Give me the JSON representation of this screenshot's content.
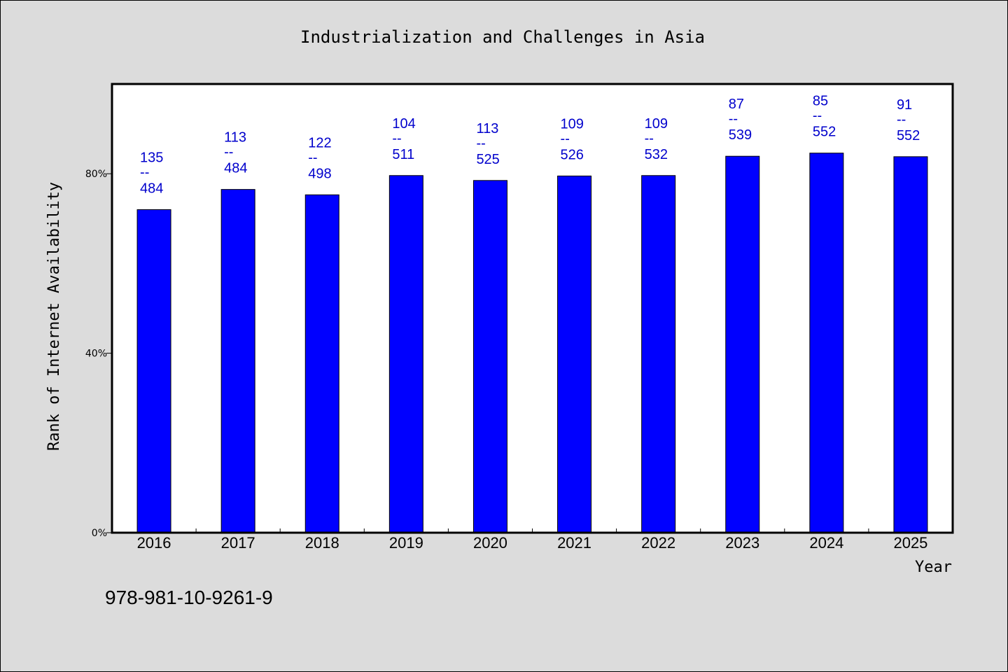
{
  "chart_data": {
    "type": "bar",
    "title": "Industrialization and Challenges in Asia",
    "xlabel": "Year",
    "ylabel": "Rank of Internet Availability",
    "categories": [
      "2016",
      "2017",
      "2018",
      "2019",
      "2020",
      "2021",
      "2022",
      "2023",
      "2024",
      "2025"
    ],
    "values": [
      72,
      76.5,
      75.3,
      79.6,
      78.5,
      79.5,
      79.6,
      83.9,
      84.6,
      83.8
    ],
    "ylim": [
      0,
      100
    ],
    "yticks": [
      0,
      40,
      80
    ],
    "ytick_labels": [
      "0%",
      "40%",
      "80%"
    ],
    "annotations": [
      {
        "rank": "135",
        "sep": "--",
        "total": "484"
      },
      {
        "rank": "113",
        "sep": "--",
        "total": "484"
      },
      {
        "rank": "122",
        "sep": "--",
        "total": "498"
      },
      {
        "rank": "104",
        "sep": "--",
        "total": "511"
      },
      {
        "rank": "113",
        "sep": "--",
        "total": "525"
      },
      {
        "rank": "109",
        "sep": "--",
        "total": "526"
      },
      {
        "rank": "109",
        "sep": "--",
        "total": "532"
      },
      {
        "rank": "87",
        "sep": "--",
        "total": "539"
      },
      {
        "rank": "85",
        "sep": "--",
        "total": "552"
      },
      {
        "rank": "91",
        "sep": "--",
        "total": "552"
      }
    ],
    "bar_color": "#0000ff",
    "annotation_color": "#0000cc",
    "grid": false,
    "legend": "none"
  },
  "footer": {
    "isbn": "978-981-10-9261-9"
  },
  "colors": {
    "background": "#dcdcdc",
    "plot_background": "#ffffff",
    "axis": "#000000"
  }
}
